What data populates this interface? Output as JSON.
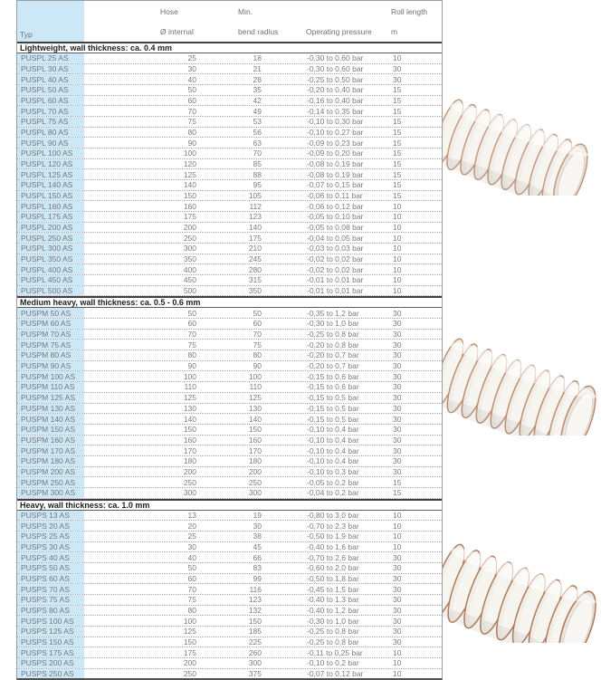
{
  "colors": {
    "typ_column_bg": "#cce8f6",
    "table_text": "#7b7c7f",
    "section_text": "#1e1f21",
    "copper_wire": "#b07a58"
  },
  "table": {
    "headers": {
      "typ": "Typ",
      "hose_line1": "Hose",
      "hose_line2": "Ø internal",
      "bend_line1": "Min.",
      "bend_line2": "bend radius",
      "pressure": "Operating pressure",
      "roll_line1": "Roll length",
      "roll_line2": "m"
    },
    "sections": [
      {
        "title": "Lightweight, wall thickness: ca. 0.4 mm",
        "rows": [
          [
            "PUSPL 25 AS",
            "25",
            "18",
            "-0,30 to 0,60 bar",
            "10"
          ],
          [
            "PUSPL 30 AS",
            "30",
            "21",
            "-0,30 to 0,60 bar",
            "30"
          ],
          [
            "PUSPL 40 AS",
            "40",
            "28",
            "-0,25 to 0,50 bar",
            "30"
          ],
          [
            "PUSPL 50 AS",
            "50",
            "35",
            "-0,20 to 0,40 bar",
            "15"
          ],
          [
            "PUSPL 60 AS",
            "60",
            "42",
            "-0,16 to 0,40 bar",
            "15"
          ],
          [
            "PUSPL 70 AS",
            "70",
            "49",
            "-0,14 to 0,35 bar",
            "15"
          ],
          [
            "PUSPL 75 AS",
            "75",
            "53",
            "-0,10 to 0,30 bar",
            "15"
          ],
          [
            "PUSPL 80 AS",
            "80",
            "56",
            "-0,10 to 0,27 bar",
            "15"
          ],
          [
            "PUSPL 90 AS",
            "90",
            "63",
            "-0,09 to 0,23 bar",
            "15"
          ],
          [
            "PUSPL 100 AS",
            "100",
            "70",
            "-0,09 to 0,20 bar",
            "15"
          ],
          [
            "PUSPL 120 AS",
            "120",
            "85",
            "-0,08 to 0,19 bar",
            "15"
          ],
          [
            "PUSPL 125 AS",
            "125",
            "88",
            "-0,08 to 0,19 bar",
            "15"
          ],
          [
            "PUSPL 140 AS",
            "140",
            "95",
            "-0,07 to 0,15 bar",
            "15"
          ],
          [
            "PUSPL 150 AS",
            "150",
            "105",
            "-0,06 to 0,11 bar",
            "15"
          ],
          [
            "PUSPL 160 AS",
            "160",
            "112",
            "-0,06 to 0,12 bar",
            "10"
          ],
          [
            "PUSPL 175 AS",
            "175",
            "123",
            "-0,05 to 0,10 bar",
            "10"
          ],
          [
            "PUSPL 200 AS",
            "200",
            "140",
            "-0,05 to 0,08 bar",
            "10"
          ],
          [
            "PUSPL 250 AS",
            "250",
            "175",
            "-0,04 to 0,05 bar",
            "10"
          ],
          [
            "PUSPL 300 AS",
            "300",
            "210",
            "-0,03 to 0,03 bar",
            "10"
          ],
          [
            "PUSPL 350 AS",
            "350",
            "245",
            "-0,02 to 0,02 bar",
            "10"
          ],
          [
            "PUSPL 400 AS",
            "400",
            "280",
            "-0,02 to 0,02 bar",
            "10"
          ],
          [
            "PUSPL 450 AS",
            "450",
            "315",
            "-0,01 to 0,01 bar",
            "10"
          ],
          [
            "PUSPL 500 AS",
            "500",
            "350",
            "-0,01 to 0,01 bar",
            "10"
          ]
        ]
      },
      {
        "title": "Medium heavy, wall thickness: ca. 0.5 - 0.6 mm",
        "rows": [
          [
            "PUSPM 50 AS",
            "50",
            "50",
            "-0,35 to 1,2 bar",
            "30"
          ],
          [
            "PUSPM 60 AS",
            "60",
            "60",
            "-0,30 to 1,0 bar",
            "30"
          ],
          [
            "PUSPM 70 AS",
            "70",
            "70",
            "-0,25 to 0,8 bar",
            "30"
          ],
          [
            "PUSPM 75 AS",
            "75",
            "75",
            "-0,20 to 0,8 bar",
            "30"
          ],
          [
            "PUSPM 80 AS",
            "80",
            "80",
            "-0,20 to 0,7 bar",
            "30"
          ],
          [
            "PUSPM 90 AS",
            "90",
            "90",
            "-0,20 to 0,7 bar",
            "30"
          ],
          [
            "PUSPM 100 AS",
            "100",
            "100",
            "-0,15 to 0,6 bar",
            "30"
          ],
          [
            "PUSPM 110 AS",
            "110",
            "110",
            "-0,15 to 0,6 bar",
            "30"
          ],
          [
            "PUSPM 125 AS",
            "125",
            "125",
            "-0,15 to 0,5 bar",
            "30"
          ],
          [
            "PUSPM 130 AS",
            "130",
            "130",
            "-0,15 to 0,5 bar",
            "30"
          ],
          [
            "PUSPM 140 AS",
            "140",
            "140",
            "-0,15 to 0,5 bar",
            "30"
          ],
          [
            "PUSPM 150 AS",
            "150",
            "150",
            "-0,10 to 0,4 bar",
            "30"
          ],
          [
            "PUSPM 160 AS",
            "160",
            "160",
            "-0,10 to 0,4 bar",
            "30"
          ],
          [
            "PUSPM 170 AS",
            "170",
            "170",
            "-0,10 to 0,4 bar",
            "30"
          ],
          [
            "PUSPM 180 AS",
            "180",
            "180",
            "-0,10 to 0,4 bar",
            "30"
          ],
          [
            "PUSPM 200 AS",
            "200",
            "200",
            "-0,10 to 0,3 bar",
            "30"
          ],
          [
            "PUSPM 250 AS",
            "250",
            "250",
            "-0,05 to 0,2 bar",
            "15"
          ],
          [
            "PUSPM 300 AS",
            "300",
            "300",
            "-0,04 to 0,2 bar",
            "15"
          ]
        ]
      },
      {
        "title": "Heavy, wall thickness: ca. 1.0 mm",
        "rows": [
          [
            "PUSPS 13 AS",
            "13",
            "19",
            "-0,80 to 3,0 bar",
            "10"
          ],
          [
            "PUSPS 20 AS",
            "20",
            "30",
            "-0,70 to 2,3 bar",
            "10"
          ],
          [
            "PUSPS 25 AS",
            "25",
            "38",
            "-0,50 to 1,9 bar",
            "10"
          ],
          [
            "PUSPS 30 AS",
            "30",
            "45",
            "-0,40 to 1,6 bar",
            "10"
          ],
          [
            "PUSPS 40 AS",
            "40",
            "66",
            "-0,70 to 2,6 bar",
            "30"
          ],
          [
            "PUSPS 50 AS",
            "50",
            "83",
            "-0,60 to 2,0 bar",
            "30"
          ],
          [
            "PUSPS 60 AS",
            "60",
            "99",
            "-0,50 to 1,8 bar",
            "30"
          ],
          [
            "PUSPS 70 AS",
            "70",
            "116",
            "-0,45 to 1,5 bar",
            "30"
          ],
          [
            "PUSPS 75 AS",
            "75",
            "123",
            "-0,40 to 1,3 bar",
            "30"
          ],
          [
            "PUSPS 80 AS",
            "80",
            "132",
            "-0,40 to 1,2 bar",
            "30"
          ],
          [
            "PUSPS 100 AS",
            "100",
            "150",
            "-0,30 to 1,0 bar",
            "30"
          ],
          [
            "PUSPS 125 AS",
            "125",
            "185",
            "-0,25 to 0,8 bar",
            "30"
          ],
          [
            "PUSPS 150 AS",
            "150",
            "225",
            "-0,25 to 0,8 bar",
            "30"
          ],
          [
            "PUSPS 175 AS",
            "175",
            "260",
            "-0,11 to 0,25 bar",
            "10"
          ],
          [
            "PUSPS 200 AS",
            "200",
            "300",
            "-0,10 to 0,2 bar",
            "10"
          ],
          [
            "PUSPS 250 AS",
            "250",
            "375",
            "-0,07 to 0,12 bar",
            "10"
          ]
        ]
      }
    ]
  },
  "photos": [
    "spiral-hose-photo-1",
    "spiral-hose-photo-2",
    "spiral-hose-photo-3"
  ]
}
